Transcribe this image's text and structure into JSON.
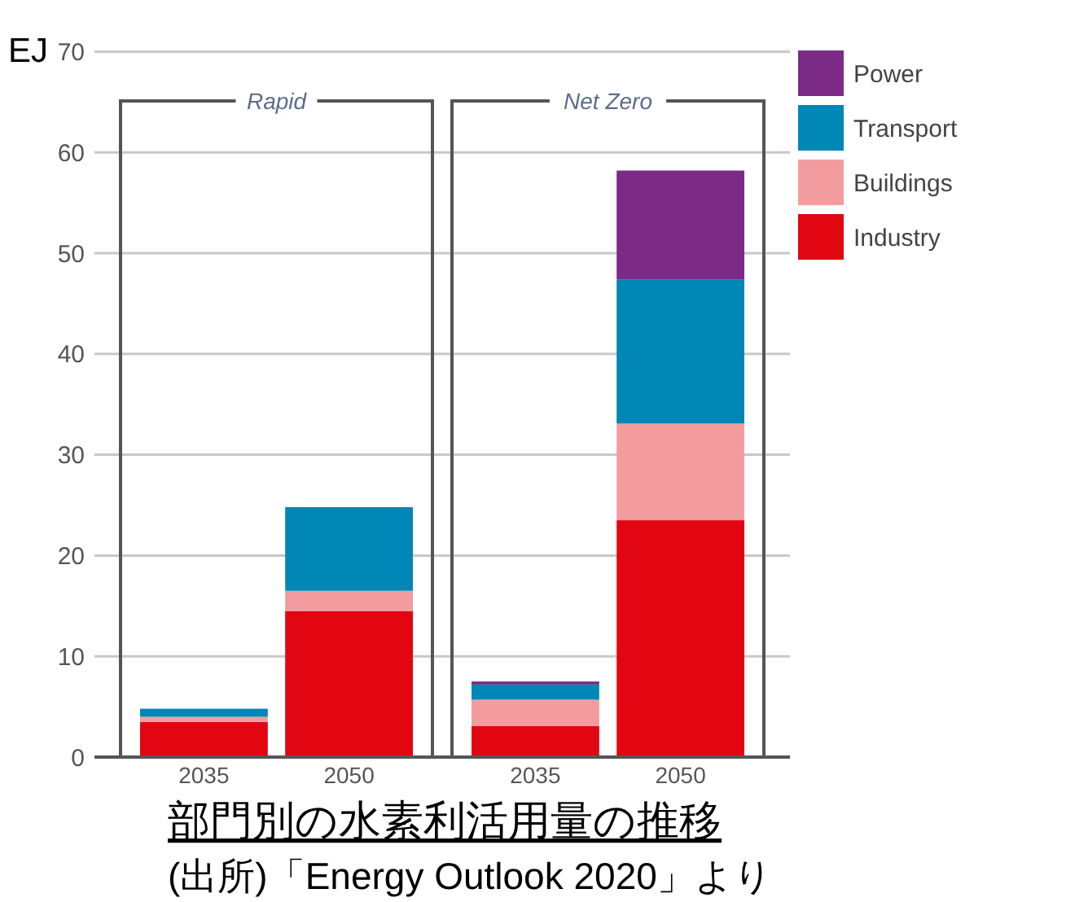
{
  "chart_data": {
    "type": "bar",
    "stacked": true,
    "title": "部門別の水素利活用量の推移",
    "ylabel": "EJ",
    "categories": [
      "2035",
      "2050",
      "2035",
      "2050"
    ],
    "series": [
      {
        "name": "Industry",
        "color": "#e20613",
        "values": [
          3.5,
          14.5,
          3.1,
          23.5
        ]
      },
      {
        "name": "Buildings",
        "color": "#f29ca0",
        "values": [
          0.5,
          2.0,
          2.6,
          9.6
        ]
      },
      {
        "name": "Transport",
        "color": "#0087b5",
        "values": [
          0.8,
          8.3,
          1.5,
          14.3
        ]
      },
      {
        "name": "Power",
        "color": "#7b2a85",
        "values": [
          null,
          null,
          0.3,
          10.8
        ]
      }
    ],
    "ylim": [
      0,
      70
    ],
    "yticks": [
      0,
      10,
      20,
      30,
      40,
      50,
      60,
      70
    ],
    "grid": "y",
    "legend": "right",
    "annotations": [
      {
        "text": "Rapid"
      },
      {
        "text": "Net Zero"
      },
      "(出所)「Energy Outlook 2020」より"
    ]
  }
}
